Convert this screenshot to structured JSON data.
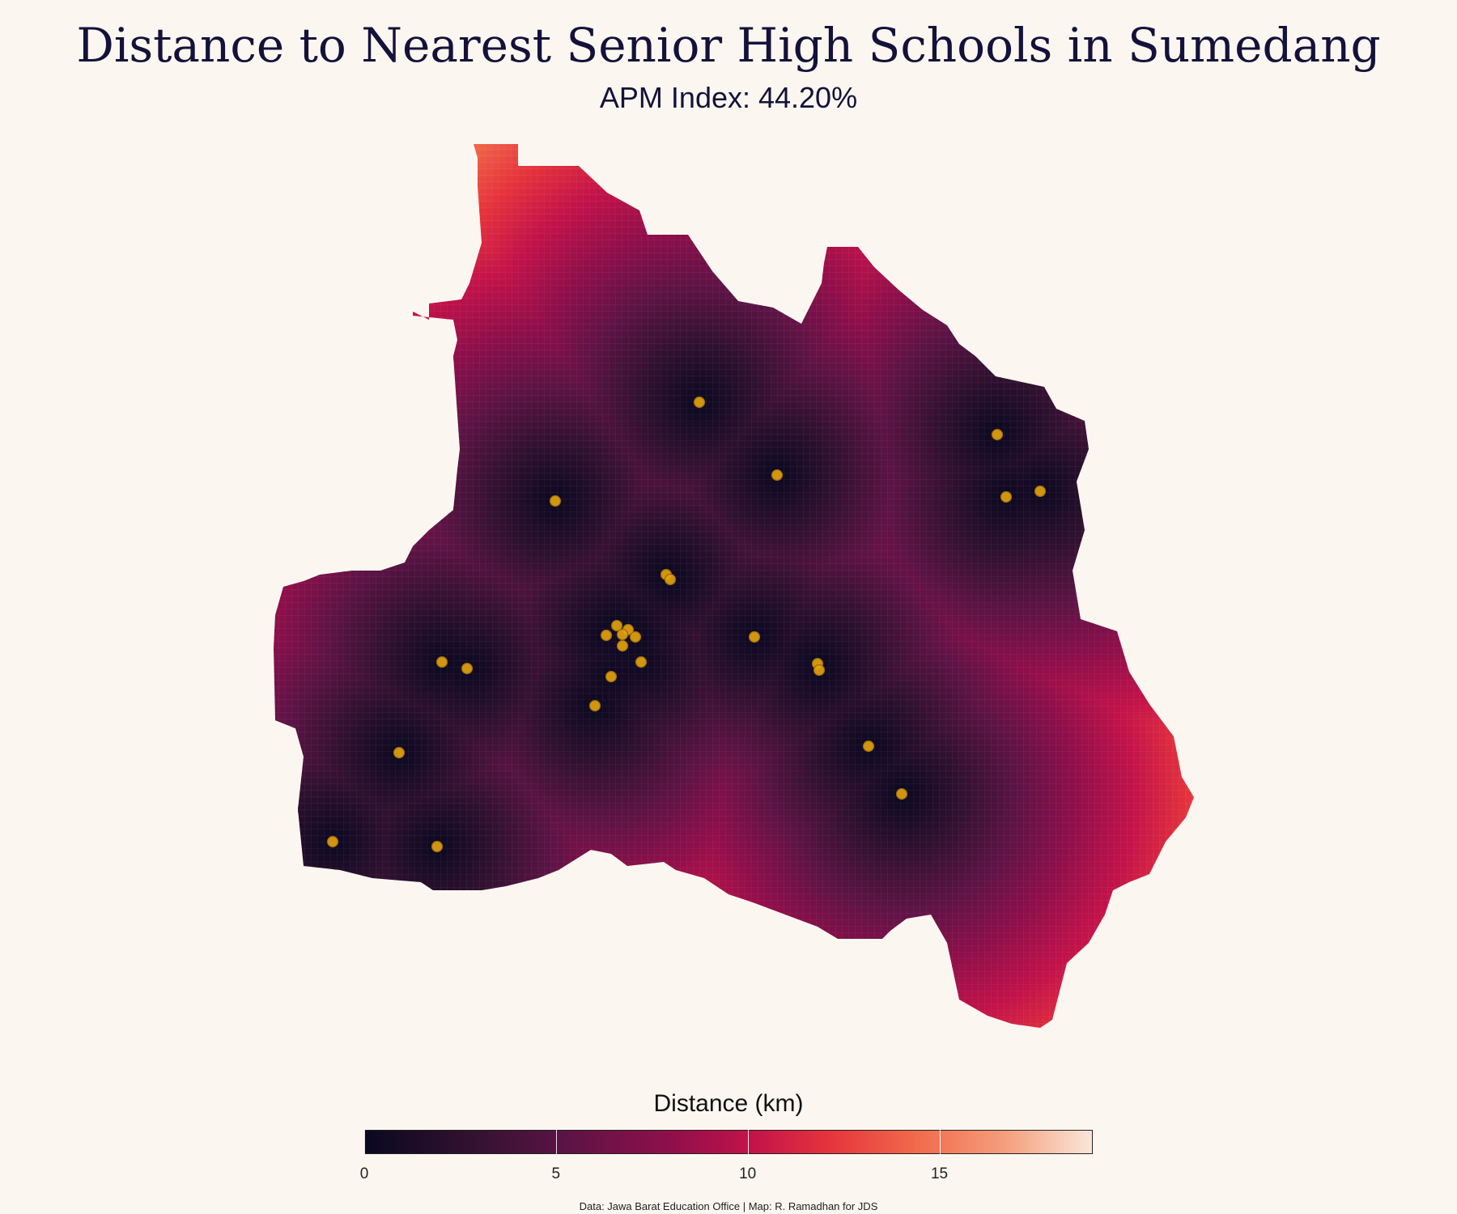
{
  "header": {
    "title": "Distance to Nearest Senior High Schools in Sumedang",
    "subtitle": "APM Index: 44.20%"
  },
  "legend": {
    "title": "Distance (km)",
    "min": 0,
    "max": 19,
    "ticks": [
      "0",
      "5",
      "10",
      "15"
    ]
  },
  "caption": "Data: Jawa Barat Education Office | Map: R. Ramadhan for JDS",
  "colors": {
    "background": "#fbf7f0",
    "school_point": "#e2a20f",
    "ramp": [
      "#0b0821",
      "#30112f",
      "#5d1346",
      "#8f0f4a",
      "#c2124a",
      "#e6343c",
      "#f16b4c",
      "#f59e7c",
      "#fae6d9"
    ]
  },
  "chart_data": {
    "type": "heatmap",
    "description_type": "raster distance map with school point locations",
    "value_unit": "km",
    "value_range": [
      0,
      19
    ],
    "schools_lonlat_relative": "points shown as orange dots",
    "school_count": 30
  }
}
